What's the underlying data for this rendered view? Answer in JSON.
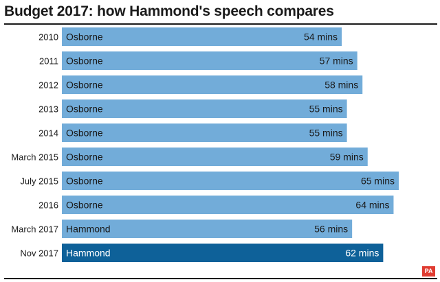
{
  "header": {
    "title": "Budget 2017: how Hammond's speech compares"
  },
  "brand": {
    "logo_text": "PA",
    "logo_color": "#e03c31"
  },
  "colors": {
    "bar": "#72acd9",
    "highlight_bar": "#0e6199",
    "bar_text": "#1a1a1a",
    "highlight_text": "#ffffff"
  },
  "chart_data": {
    "type": "bar",
    "orientation": "horizontal",
    "title": "Budget 2017: how Hammond's speech compares",
    "categories": [
      "2010",
      "2011",
      "2012",
      "2013",
      "2014",
      "March 2015",
      "July 2015",
      "2016",
      "March 2017",
      "Nov 2017"
    ],
    "speakers": [
      "Osborne",
      "Osborne",
      "Osborne",
      "Osborne",
      "Osborne",
      "Osborne",
      "Osborne",
      "Osborne",
      "Hammond",
      "Hammond"
    ],
    "values": [
      54,
      57,
      58,
      55,
      55,
      59,
      65,
      64,
      56,
      62
    ],
    "value_labels": [
      "54 mins",
      "57 mins",
      "58 mins",
      "55 mins",
      "55 mins",
      "59 mins",
      "65 mins",
      "64 mins",
      "56 mins",
      "62 mins"
    ],
    "highlight_index": 9,
    "xlim": [
      0,
      65
    ],
    "grid": false,
    "legend": "none"
  }
}
